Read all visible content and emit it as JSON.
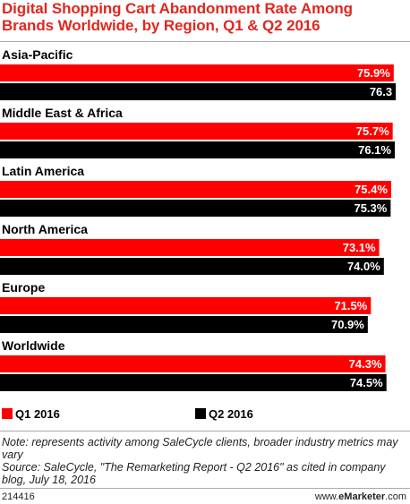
{
  "title": "Digital Shopping Cart Abandonment Rate Among Brands Worldwide, by Region, Q1 & Q2 2016",
  "colors": {
    "q1": "#ff0000",
    "q2": "#000000",
    "title": "#e0271f"
  },
  "chart_data": {
    "type": "bar",
    "orientation": "horizontal",
    "categories": [
      "Asia-Pacific",
      "Middle East & Africa",
      "Latin America",
      "North America",
      "Europe",
      "Worldwide"
    ],
    "series": [
      {
        "name": "Q1 2016",
        "values": [
          75.9,
          75.7,
          75.4,
          73.1,
          71.5,
          74.3
        ],
        "labels": [
          "75.9%",
          "75.7%",
          "75.4%",
          "73.1%",
          "71.5%",
          "74.3%"
        ]
      },
      {
        "name": "Q2 2016",
        "values": [
          76.3,
          76.1,
          75.3,
          74.0,
          70.9,
          74.5
        ],
        "labels": [
          "76.3",
          "76.1%",
          "75.3%",
          "74.0%",
          "70.9%",
          "74.5%"
        ]
      }
    ],
    "xlim": [
      0,
      78
    ],
    "grid": false,
    "legend": "bottom-left"
  },
  "legend": {
    "q1": "Q1 2016",
    "q2": "Q2 2016"
  },
  "note": "Note: represents activity among SaleCycle clients, broader industry metrics may vary",
  "source": "Source: SaleCycle, \"The Remarketing Report - Q2 2016\" as cited in company blog, July 18, 2016",
  "footer": {
    "id": "214416",
    "brand_prefix": "www.",
    "brand_bold": "eMarketer",
    "brand_suffix": ".com"
  }
}
